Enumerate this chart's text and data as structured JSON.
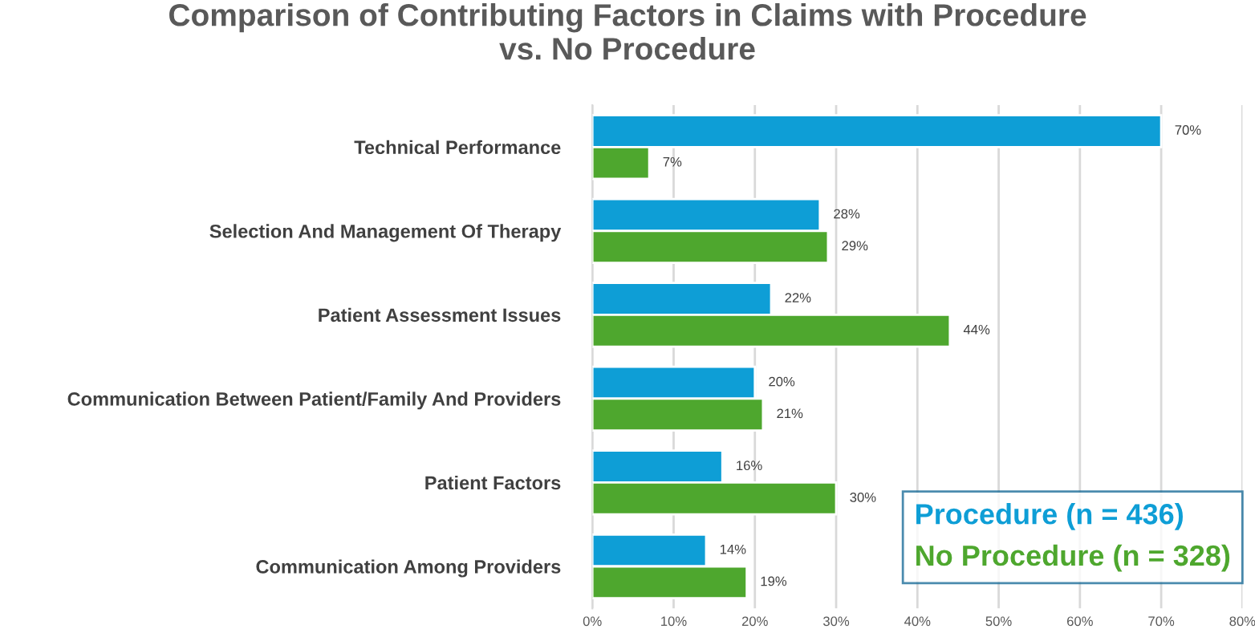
{
  "chart_data": {
    "type": "bar",
    "orientation": "horizontal",
    "title": "Comparison of Contributing Factors in Claims with Procedure\nvs. No Procedure",
    "categories": [
      "Technical Performance",
      "Selection And Management Of Therapy",
      "Patient Assessment Issues",
      "Communication Between Patient/Family And Providers",
      "Patient Factors",
      "Communication Among Providers"
    ],
    "series": [
      {
        "name": "Procedure (n = 436)",
        "color": "#0e9ed6",
        "values": [
          70,
          28,
          22,
          20,
          16,
          14
        ],
        "value_labels": [
          "70%",
          "28%",
          "22%",
          "20%",
          "16%",
          "14%"
        ]
      },
      {
        "name": "No Procedure (n = 328)",
        "color": "#4ea72e",
        "values": [
          7,
          29,
          44,
          21,
          30,
          19
        ],
        "value_labels": [
          "7%",
          "29%",
          "44%",
          "21%",
          "30%",
          "19%"
        ]
      }
    ],
    "xlim": [
      0,
      80
    ],
    "xticks": [
      {
        "value": 0,
        "label": "0%"
      },
      {
        "value": 10,
        "label": "10%"
      },
      {
        "value": 20,
        "label": "20%"
      },
      {
        "value": 30,
        "label": "30%"
      },
      {
        "value": 40,
        "label": "40%"
      },
      {
        "value": 50,
        "label": "50%"
      },
      {
        "value": 60,
        "label": "60%"
      },
      {
        "value": 70,
        "label": "70%"
      },
      {
        "value": 80,
        "label": "80%"
      }
    ],
    "grid": "x",
    "legend": "bottom right"
  }
}
